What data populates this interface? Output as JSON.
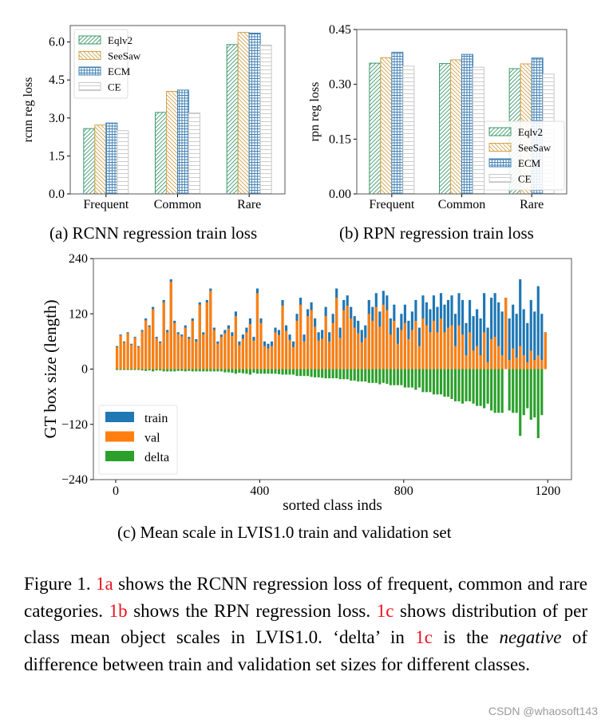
{
  "chart_data": [
    {
      "id": "a",
      "type": "bar",
      "caption": "(a) RCNN regression train loss",
      "ylabel": "rcnn reg loss",
      "xlabel": "",
      "categories": [
        "Frequent",
        "Common",
        "Rare"
      ],
      "ylim": [
        0,
        6.65
      ],
      "yticks": [
        "0.0",
        "1.5",
        "3.0",
        "4.5",
        "6.0"
      ],
      "ytick_values": [
        0,
        1.5,
        3.0,
        4.5,
        6.0
      ],
      "legend_position": "top-left",
      "series": [
        {
          "name": "Eqlv2",
          "values": [
            2.58,
            3.22,
            5.9
          ],
          "color": "#3d9a6c",
          "hatch": "diagonal-forward"
        },
        {
          "name": "SeeSaw",
          "values": [
            2.72,
            4.05,
            6.38
          ],
          "color": "#d2a24a",
          "hatch": "diagonal-back"
        },
        {
          "name": "ECM",
          "values": [
            2.8,
            4.1,
            6.35
          ],
          "color": "#3f7fb4",
          "hatch": "grid"
        },
        {
          "name": "CE",
          "values": [
            2.5,
            3.2,
            5.88
          ],
          "color": "#c8c8c8",
          "hatch": "horizontal"
        }
      ]
    },
    {
      "id": "b",
      "type": "bar",
      "caption": "(b) RPN regression train loss",
      "ylabel": "rpn reg loss",
      "xlabel": "",
      "categories": [
        "Frequent",
        "Common",
        "Rare"
      ],
      "ylim": [
        0,
        0.45
      ],
      "yticks": [
        "0.00",
        "0.15",
        "0.30",
        "0.45"
      ],
      "ytick_values": [
        0,
        0.15,
        0.3,
        0.45
      ],
      "legend_position": "bottom-right",
      "series": [
        {
          "name": "Eqlv2",
          "values": [
            0.358,
            0.357,
            0.343
          ],
          "color": "#3d9a6c",
          "hatch": "diagonal-forward"
        },
        {
          "name": "SeeSaw",
          "values": [
            0.373,
            0.367,
            0.356
          ],
          "color": "#d2a24a",
          "hatch": "diagonal-back"
        },
        {
          "name": "ECM",
          "values": [
            0.388,
            0.382,
            0.372
          ],
          "color": "#3f7fb4",
          "hatch": "grid"
        },
        {
          "name": "CE",
          "values": [
            0.35,
            0.347,
            0.328
          ],
          "color": "#c8c8c8",
          "hatch": "horizontal"
        }
      ]
    },
    {
      "id": "c",
      "type": "bar",
      "caption": "(c) Mean scale in LVIS1.0 train and validation set",
      "ylabel": "GT box size (length)",
      "xlabel": "sorted class inds",
      "xlim": [
        -62,
        1266
      ],
      "ylim": [
        -240,
        240
      ],
      "xticks": [
        "0",
        "400",
        "800",
        "1200"
      ],
      "xtick_values": [
        0,
        400,
        800,
        1200
      ],
      "yticks": [
        "−240",
        "−120",
        "0",
        "120",
        "240"
      ],
      "ytick_values": [
        -240,
        -120,
        0,
        120,
        240
      ],
      "legend_position": "bottom-left",
      "x_start": 0,
      "x_step": 10,
      "series": [
        {
          "name": "train",
          "color": "#1f77b4",
          "values": [
            50,
            75,
            60,
            80,
            55,
            70,
            50,
            85,
            110,
            95,
            135,
            70,
            60,
            150,
            85,
            195,
            105,
            80,
            75,
            95,
            70,
            110,
            65,
            145,
            80,
            150,
            175,
            90,
            60,
            75,
            85,
            95,
            80,
            125,
            60,
            75,
            90,
            110,
            70,
            175,
            110,
            60,
            55,
            60,
            90,
            85,
            150,
            95,
            75,
            60,
            120,
            155,
            75,
            130,
            145,
            110,
            80,
            85,
            135,
            80,
            120,
            175,
            90,
            150,
            160,
            135,
            115,
            105,
            85,
            95,
            150,
            135,
            165,
            125,
            170,
            160,
            110,
            140,
            90,
            120,
            140,
            105,
            125,
            150,
            90,
            160,
            145,
            130,
            160,
            135,
            165,
            140,
            150,
            160,
            120,
            165,
            150,
            100,
            150,
            115,
            130,
            110,
            165,
            90,
            155,
            165,
            145,
            125,
            155,
            110,
            140,
            120,
            195,
            130,
            100,
            150,
            125,
            180,
            120,
            80
          ]
        },
        {
          "name": "val",
          "color": "#ff7f0e",
          "values": [
            48,
            73,
            58,
            78,
            53,
            68,
            48,
            82,
            106,
            92,
            130,
            67,
            57,
            145,
            80,
            190,
            100,
            76,
            71,
            90,
            66,
            105,
            60,
            140,
            75,
            145,
            170,
            85,
            55,
            70,
            78,
            88,
            72,
            115,
            52,
            66,
            80,
            98,
            62,
            165,
            100,
            50,
            45,
            50,
            80,
            74,
            138,
            83,
            63,
            48,
            105,
            140,
            60,
            115,
            128,
            92,
            62,
            66,
            115,
            60,
            100,
            155,
            68,
            128,
            138,
            110,
            90,
            78,
            58,
            68,
            120,
            105,
            135,
            92,
            140,
            128,
            75,
            105,
            55,
            85,
            100,
            65,
            85,
            105,
            50,
            110,
            95,
            80,
            105,
            80,
            110,
            80,
            90,
            95,
            50,
            95,
            75,
            30,
            80,
            40,
            50,
            30,
            80,
            15,
            65,
            70,
            50,
            30,
            155,
            20,
            45,
            25,
            50,
            30,
            15,
            40,
            20,
            30,
            20,
            80
          ]
        },
        {
          "name": "delta",
          "color": "#2ca02c",
          "values": [
            -2,
            -2,
            -2,
            -2,
            -2,
            -2,
            -2,
            -3,
            -4,
            -3,
            -5,
            -3,
            -3,
            -5,
            -5,
            -5,
            -5,
            -4,
            -4,
            -5,
            -4,
            -5,
            -5,
            -5,
            -5,
            -5,
            -5,
            -5,
            -5,
            -5,
            -7,
            -7,
            -8,
            -10,
            -8,
            -9,
            -10,
            -12,
            -8,
            -10,
            -10,
            -10,
            -10,
            -10,
            -10,
            -11,
            -12,
            -12,
            -12,
            -12,
            -15,
            -15,
            -15,
            -15,
            -17,
            -18,
            -18,
            -19,
            -20,
            -20,
            -20,
            -20,
            -22,
            -22,
            -22,
            -25,
            -25,
            -27,
            -27,
            -27,
            -30,
            -30,
            -30,
            -33,
            -30,
            -32,
            -35,
            -35,
            -35,
            -35,
            -40,
            -40,
            -40,
            -45,
            -40,
            -50,
            -50,
            -50,
            -55,
            -55,
            -55,
            -60,
            -60,
            -65,
            -70,
            -70,
            -75,
            -70,
            -70,
            -75,
            -80,
            -80,
            -85,
            -75,
            -90,
            -95,
            -95,
            -95,
            0,
            -90,
            -95,
            -95,
            -145,
            -100,
            -85,
            -110,
            -105,
            -150,
            -100,
            0
          ]
        }
      ]
    }
  ],
  "caption": {
    "segments": [
      {
        "text": "Figure 1. ",
        "style": "normal"
      },
      {
        "text": "1a",
        "style": "ref"
      },
      {
        "text": " shows the RCNN regression loss of frequent, common and rare categories. ",
        "style": "normal"
      },
      {
        "text": "1b",
        "style": "ref"
      },
      {
        "text": " shows the RPN regression loss. ",
        "style": "normal"
      },
      {
        "text": "1c",
        "style": "ref"
      },
      {
        "text": " shows distribution of per class mean object scales in LVIS1.0. ‘delta’ in ",
        "style": "normal"
      },
      {
        "text": "1c",
        "style": "ref"
      },
      {
        "text": " is the ",
        "style": "normal"
      },
      {
        "text": "negative",
        "style": "em"
      },
      {
        "text": " of difference between train and validation set sizes for different classes.",
        "style": "normal"
      }
    ]
  },
  "watermark": "CSDN @whaosoft143"
}
